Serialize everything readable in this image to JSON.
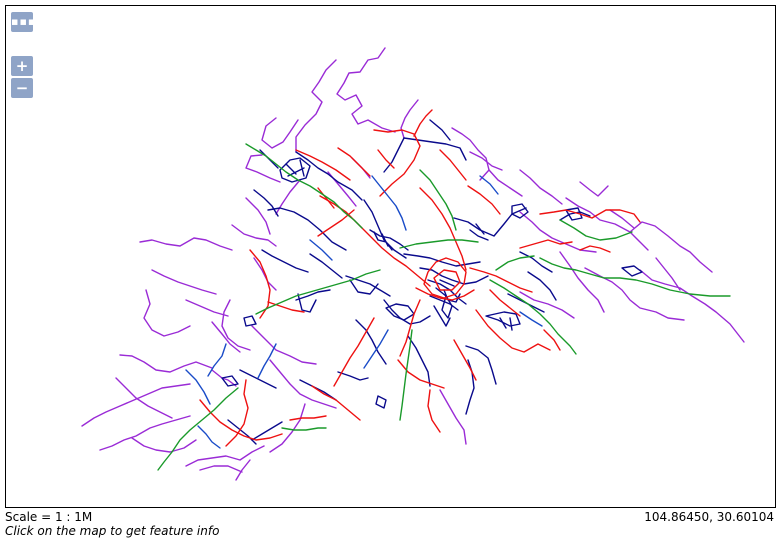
{
  "map": {
    "layer_colors": {
      "violet": "#9a2bd6",
      "navy": "#0a0a8c",
      "red": "#ee1111",
      "green": "#1a9a2a",
      "blue": "#1a4cc8"
    }
  },
  "controls": {
    "layers_label": "▪▪▪",
    "zoom_in_label": "+",
    "zoom_out_label": "−"
  },
  "status": {
    "scale": "Scale = 1 : 1M",
    "coordinates": "104.86450, 30.60104",
    "hint": "Click on the map to get feature info"
  }
}
